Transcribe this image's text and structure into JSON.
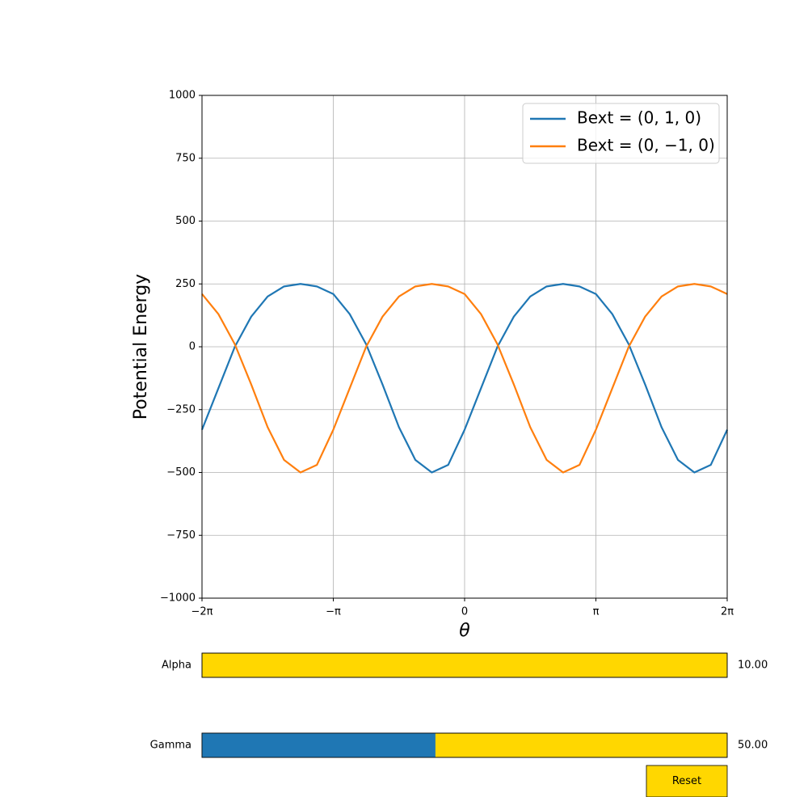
{
  "chart_data": {
    "type": "line",
    "x": [
      -6.2832,
      -5.8905,
      -5.4978,
      -5.1051,
      -4.7124,
      -4.3197,
      -3.927,
      -3.5343,
      -3.1416,
      -2.7489,
      -2.3562,
      -1.9635,
      -1.5708,
      -1.1781,
      -0.7854,
      -0.3927,
      0,
      0.3927,
      0.7854,
      1.1781,
      1.5708,
      1.9635,
      2.3562,
      2.7489,
      3.1416,
      3.5343,
      3.927,
      4.3197,
      4.7124,
      5.1051,
      5.4978,
      5.8905,
      6.2832
    ],
    "series": [
      {
        "name": "Bext = (0, 1, 0)",
        "color": "#1f77b4",
        "values": [
          -330,
          -165,
          0,
          120,
          200,
          240,
          250,
          240,
          210,
          130,
          10,
          -150,
          -320,
          -450,
          -500,
          -470,
          -330,
          -165,
          0,
          120,
          200,
          240,
          250,
          240,
          210,
          130,
          10,
          -150,
          -320,
          -450,
          -500,
          -470,
          -330
        ]
      },
      {
        "name": "Bext = (0, −1, 0)",
        "color": "#ff7f0e",
        "values": [
          210,
          130,
          10,
          -150,
          -320,
          -450,
          -500,
          -470,
          -330,
          -165,
          0,
          120,
          200,
          240,
          250,
          240,
          210,
          130,
          10,
          -150,
          -320,
          -450,
          -500,
          -470,
          -330,
          -165,
          0,
          120,
          200,
          240,
          250,
          240,
          210
        ]
      }
    ],
    "xlabel": "θ",
    "ylabel": "Potential Energy",
    "xlim": [
      -6.2832,
      6.2832
    ],
    "ylim": [
      -1000,
      1000
    ],
    "xticks": [
      {
        "value": -6.2832,
        "label": "−2π"
      },
      {
        "value": -3.1416,
        "label": "−π"
      },
      0,
      {
        "value": 3.1416,
        "label": "π"
      },
      {
        "value": 6.2832,
        "label": "2π"
      }
    ],
    "yticks": [
      {
        "value": -1000,
        "label": "−1000"
      },
      {
        "value": -750,
        "label": "−750"
      },
      {
        "value": -500,
        "label": "−500"
      },
      {
        "value": -250,
        "label": "−250"
      },
      0,
      250,
      500,
      750,
      1000
    ],
    "grid": true,
    "legend": "upper right"
  },
  "sliders": [
    {
      "label": "Alpha",
      "value": 10,
      "value_label": "10.00",
      "min": 10,
      "max": 100
    },
    {
      "label": "Gamma",
      "value": 50,
      "value_label": "50.00",
      "min": 10,
      "max": 100
    }
  ],
  "reset_button": "Reset"
}
